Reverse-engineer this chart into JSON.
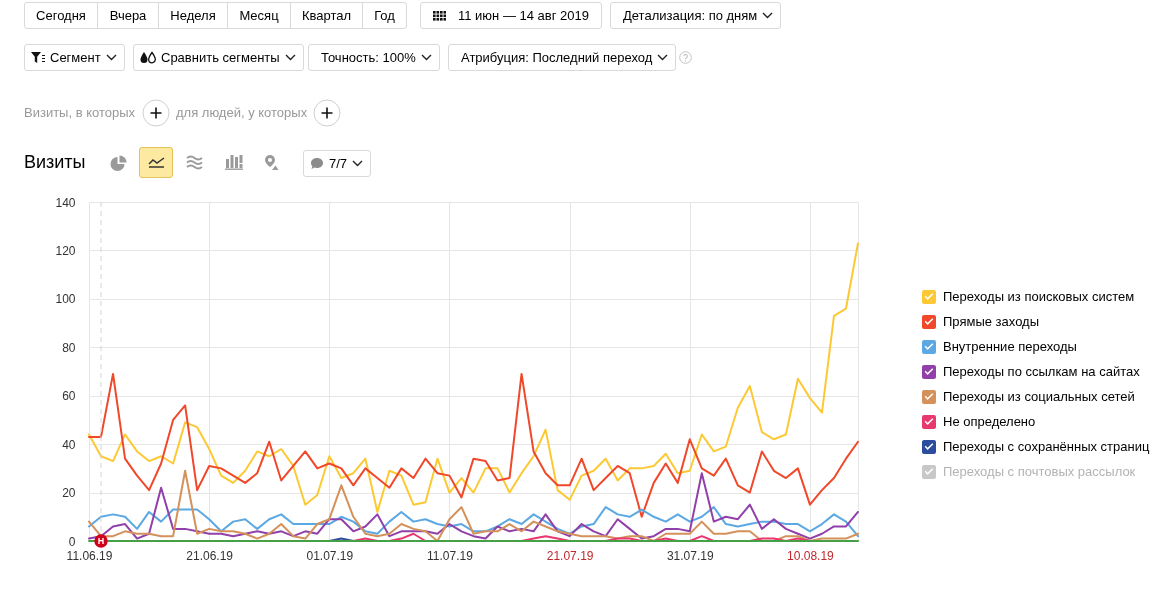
{
  "chart_data": {
    "type": "line",
    "title": "Визиты",
    "annotations": [
      "Сегодня",
      "Вчера",
      "Неделя",
      "Месяц",
      "Квартал",
      "Год",
      "11 июн — 14 авг 2019",
      "Детализация: по дням",
      "Сегмент",
      "Сравнить сегменты",
      "Точность: 100%",
      "Атрибуция: Последний переход",
      "Визиты, в которых",
      "для людей, у которых",
      "7/7"
    ],
    "x": [
      "2019-06-11",
      "2019-06-12",
      "2019-06-13",
      "2019-06-14",
      "2019-06-15",
      "2019-06-16",
      "2019-06-17",
      "2019-06-18",
      "2019-06-19",
      "2019-06-20",
      "2019-06-21",
      "2019-06-22",
      "2019-06-23",
      "2019-06-24",
      "2019-06-25",
      "2019-06-26",
      "2019-06-27",
      "2019-06-28",
      "2019-06-29",
      "2019-06-30",
      "2019-07-01",
      "2019-07-02",
      "2019-07-03",
      "2019-07-04",
      "2019-07-05",
      "2019-07-06",
      "2019-07-07",
      "2019-07-08",
      "2019-07-09",
      "2019-07-10",
      "2019-07-11",
      "2019-07-12",
      "2019-07-13",
      "2019-07-14",
      "2019-07-15",
      "2019-07-16",
      "2019-07-17",
      "2019-07-18",
      "2019-07-19",
      "2019-07-20",
      "2019-07-21",
      "2019-07-22",
      "2019-07-23",
      "2019-07-24",
      "2019-07-25",
      "2019-07-26",
      "2019-07-27",
      "2019-07-28",
      "2019-07-29",
      "2019-07-30",
      "2019-07-31",
      "2019-08-01",
      "2019-08-02",
      "2019-08-03",
      "2019-08-04",
      "2019-08-05",
      "2019-08-06",
      "2019-08-07",
      "2019-08-08",
      "2019-08-09",
      "2019-08-10",
      "2019-08-11",
      "2019-08-12",
      "2019-08-13",
      "2019-08-14"
    ],
    "series": [
      {
        "name": "Переходы из поисковых систем",
        "color": "#fcc935",
        "values": [
          44,
          35,
          33,
          44,
          37,
          33,
          35,
          32,
          49,
          47,
          38,
          27,
          24,
          29,
          37,
          35,
          38,
          31,
          15,
          19,
          35,
          26,
          28,
          34,
          12,
          29,
          27,
          15,
          16,
          34,
          20,
          26,
          20,
          30,
          30,
          20,
          28,
          35,
          46,
          21,
          17,
          27,
          29,
          34,
          25,
          30,
          30,
          31,
          36,
          28,
          29,
          44,
          37,
          39,
          55,
          64,
          45,
          42,
          44,
          67,
          59,
          53,
          93,
          96,
          123
        ]
      },
      {
        "name": "Прямые заходы",
        "color": "#f0482a",
        "values": [
          43,
          43,
          69,
          34,
          27,
          21,
          32,
          50,
          56,
          21,
          31,
          30,
          27,
          24,
          28,
          41,
          25,
          31,
          37,
          30,
          32,
          30,
          23,
          30,
          26,
          22,
          30,
          26,
          34,
          28,
          27,
          18,
          34,
          33,
          25,
          26,
          69,
          37,
          28,
          23,
          23,
          34,
          21,
          26,
          31,
          28,
          10,
          24,
          32,
          24,
          42,
          30,
          27,
          34,
          23,
          20,
          37,
          29,
          26,
          30,
          15,
          21,
          26,
          34,
          41
        ]
      },
      {
        "name": "Внутренние переходы",
        "color": "#5ba8e2",
        "values": [
          6,
          10,
          11,
          10,
          5,
          12,
          8,
          13,
          13,
          13,
          9,
          4,
          8,
          9,
          5,
          9,
          11,
          7,
          7,
          7,
          7,
          10,
          8,
          4,
          3,
          8,
          12,
          8,
          9,
          7,
          6,
          7,
          4,
          4,
          6,
          9,
          7,
          11,
          8,
          5,
          3,
          6,
          7,
          14,
          11,
          10,
          13,
          10,
          8,
          11,
          8,
          10,
          14,
          7,
          6,
          7,
          8,
          8,
          7,
          7,
          4,
          7,
          11,
          8,
          2
        ]
      },
      {
        "name": "Переходы по ссылкам на сайтах",
        "color": "#9140aa",
        "values": [
          1,
          2,
          6,
          7,
          1,
          3,
          22,
          5,
          5,
          4,
          3,
          3,
          2,
          3,
          4,
          3,
          4,
          2,
          4,
          3,
          9,
          9,
          4,
          6,
          11,
          2,
          4,
          4,
          4,
          3,
          7,
          4,
          2,
          1,
          6,
          4,
          5,
          4,
          11,
          4,
          2,
          7,
          4,
          2,
          9,
          5,
          1,
          2,
          5,
          5,
          4,
          28,
          8,
          10,
          9,
          15,
          5,
          9,
          5,
          3,
          1,
          3,
          6,
          6,
          12
        ]
      },
      {
        "name": "Переходы из социальных сетей",
        "color": "#d4915a",
        "values": [
          8,
          2,
          2,
          4,
          3,
          3,
          2,
          2,
          29,
          3,
          5,
          4,
          4,
          3,
          1,
          3,
          7,
          2,
          1,
          7,
          9,
          23,
          10,
          3,
          2,
          3,
          7,
          5,
          4,
          0,
          9,
          14,
          3,
          4,
          4,
          7,
          4,
          8,
          6,
          4,
          3,
          2,
          2,
          2,
          1,
          2,
          2,
          0,
          3,
          3,
          3,
          8,
          3,
          3,
          4,
          4,
          0,
          0,
          2,
          2,
          0,
          1,
          1,
          1,
          3
        ]
      },
      {
        "name": "Не определено",
        "color": "#e8386e",
        "values": [
          null,
          null,
          null,
          null,
          null,
          null,
          null,
          null,
          null,
          null,
          null,
          null,
          null,
          null,
          null,
          null,
          null,
          null,
          null,
          null,
          null,
          null,
          0,
          1,
          0,
          0,
          1,
          3,
          0,
          null,
          null,
          null,
          null,
          null,
          null,
          null,
          0,
          1,
          2,
          1,
          0,
          null,
          null,
          0,
          1,
          1,
          0,
          0,
          1,
          0,
          0,
          2,
          0,
          null,
          null,
          0,
          1,
          1,
          0,
          1,
          0,
          null,
          null,
          null,
          null
        ]
      },
      {
        "name": "Переходы с сохранённых страниц",
        "color": "#2c4c9e",
        "values": [
          null,
          null,
          null,
          null,
          null,
          null,
          null,
          null,
          null,
          null,
          null,
          null,
          null,
          null,
          null,
          null,
          null,
          null,
          null,
          null,
          0,
          1,
          0,
          null,
          null,
          null,
          null,
          null,
          null,
          null,
          null,
          null,
          null,
          null,
          null,
          null,
          null,
          null,
          null,
          null,
          null,
          null,
          null,
          null,
          null,
          null,
          null,
          null,
          null,
          null,
          null,
          null,
          null,
          null,
          null,
          null,
          null,
          null,
          null,
          null,
          null,
          null,
          null,
          null,
          null
        ]
      },
      {
        "name": "Переходы с почтовых рассылок",
        "color": "#c8c8c8",
        "values": [
          null,
          null,
          null,
          null,
          null,
          null,
          null,
          null,
          null,
          null,
          null,
          null,
          null,
          null,
          null,
          null,
          null,
          null,
          null,
          null,
          null,
          null,
          null,
          null,
          null,
          null,
          null,
          null,
          null,
          null,
          null,
          null,
          null,
          null,
          null,
          null,
          null,
          null,
          null,
          null,
          null,
          null,
          null,
          null,
          null,
          null,
          null,
          null,
          null,
          null,
          null,
          null,
          null,
          null,
          null,
          null,
          null,
          null,
          null,
          null,
          null,
          null,
          null,
          null,
          null
        ]
      },
      {
        "color": "#46a046",
        "values": [
          0,
          0,
          0,
          0,
          0,
          0,
          0,
          0,
          0,
          0,
          0,
          0,
          0,
          0,
          0,
          0,
          0,
          0,
          0,
          0,
          0,
          0,
          0,
          0,
          0,
          0,
          0,
          0,
          0,
          0,
          0,
          0,
          0,
          0,
          0,
          0,
          0,
          0,
          0,
          0,
          0,
          0,
          0,
          0,
          0,
          0,
          0,
          0,
          0,
          0,
          0,
          0,
          0,
          0,
          0,
          0,
          0,
          0,
          0,
          0,
          0,
          0,
          0,
          0,
          0
        ]
      }
    ],
    "xlim": [
      "2019-06-11",
      "2019-08-14"
    ],
    "xticks": [
      {
        "value": "2019-06-11",
        "label": "11.06.19"
      },
      {
        "value": "2019-06-21",
        "label": "21.06.19"
      },
      {
        "value": "2019-07-01",
        "label": "01.07.19"
      },
      {
        "value": "2019-07-11",
        "label": "11.07.19"
      },
      {
        "value": "2019-07-21",
        "label": "21.07.19"
      },
      {
        "value": "2019-07-31",
        "label": "31.07.19"
      },
      {
        "value": "2019-08-10",
        "label": "10.08.19"
      }
    ],
    "ylim": [
      0,
      140
    ],
    "yticks": [
      0,
      20,
      40,
      60,
      80,
      100,
      120,
      140
    ],
    "grid": true,
    "legend": "right",
    "marker": "none",
    "line_style": "solid",
    "ref_lines": [
      {
        "axis": "x",
        "value": "2019-06-12",
        "label": "Н",
        "color": "#d4d4d4",
        "line_style": "dashed"
      }
    ]
  }
}
